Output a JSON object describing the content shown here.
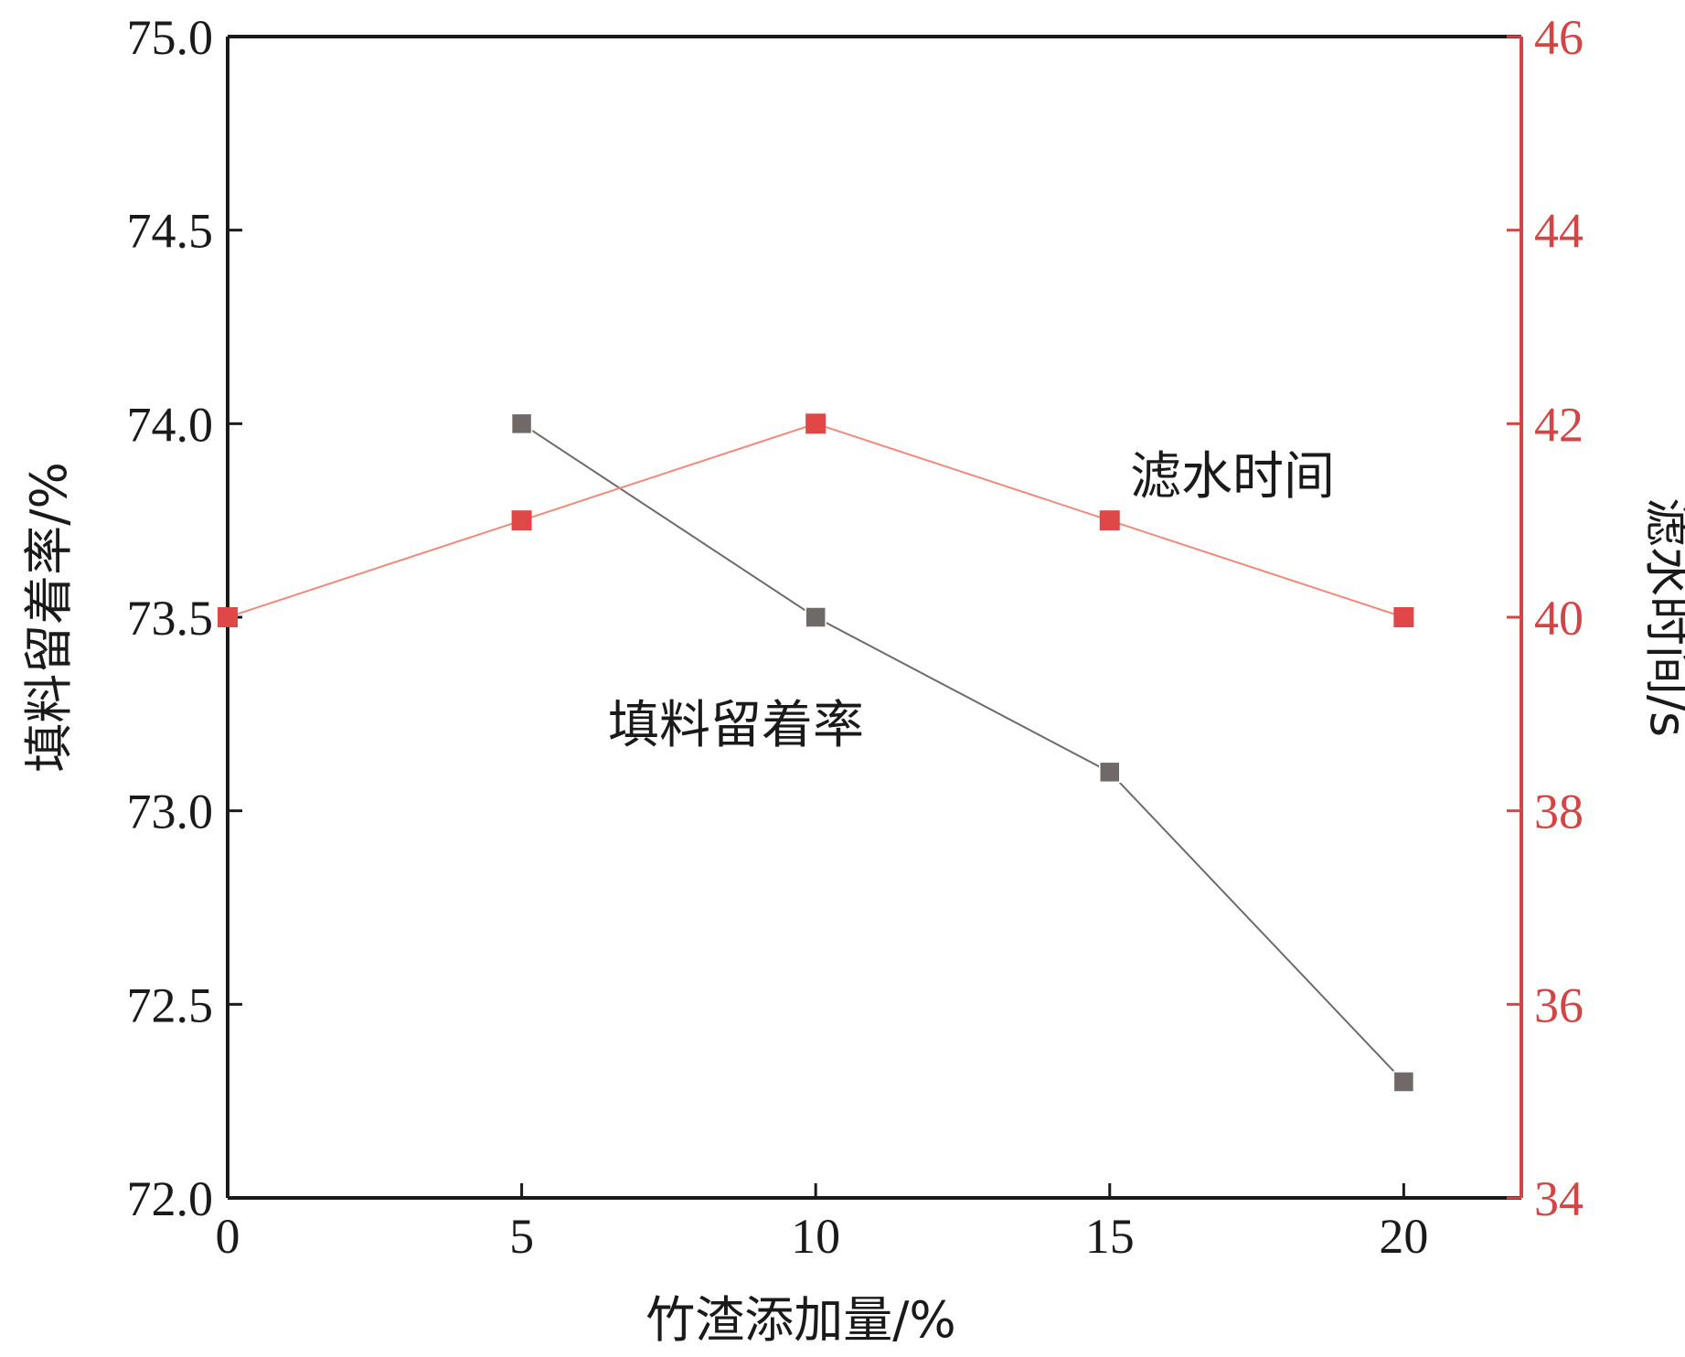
{
  "chart_data": {
    "type": "line",
    "title": "",
    "xlabel": "竹渣添加量/%",
    "ylabel_left": "填料留着率/%",
    "ylabel_right": "滤水时间/s",
    "xlim": [
      0,
      22
    ],
    "ylim_left": [
      72.0,
      75.0
    ],
    "ylim_right": [
      34,
      46
    ],
    "x_ticks": [
      "0",
      "5",
      "10",
      "15",
      "20"
    ],
    "y_left_ticks": [
      "72.0",
      "72.5",
      "73.0",
      "73.5",
      "74.0",
      "74.5",
      "75.0"
    ],
    "y_right_ticks": [
      "34",
      "36",
      "38",
      "40",
      "42",
      "44",
      "46"
    ],
    "grid": false,
    "colors": {
      "left_axis": "#1a1a1a",
      "right_axis": "#d24545",
      "retention": "#6f6a68",
      "drainage": "#e04848",
      "drainage_line": "#f08a7a"
    },
    "series": [
      {
        "name": "填料留着率",
        "axis": "left",
        "x": [
          5,
          10,
          15,
          20
        ],
        "values": [
          74.0,
          73.5,
          73.1,
          72.3
        ]
      },
      {
        "name": "滤水时间",
        "axis": "right",
        "x": [
          0,
          5,
          10,
          15,
          20
        ],
        "values": [
          40,
          41,
          42,
          41,
          40
        ]
      }
    ]
  }
}
